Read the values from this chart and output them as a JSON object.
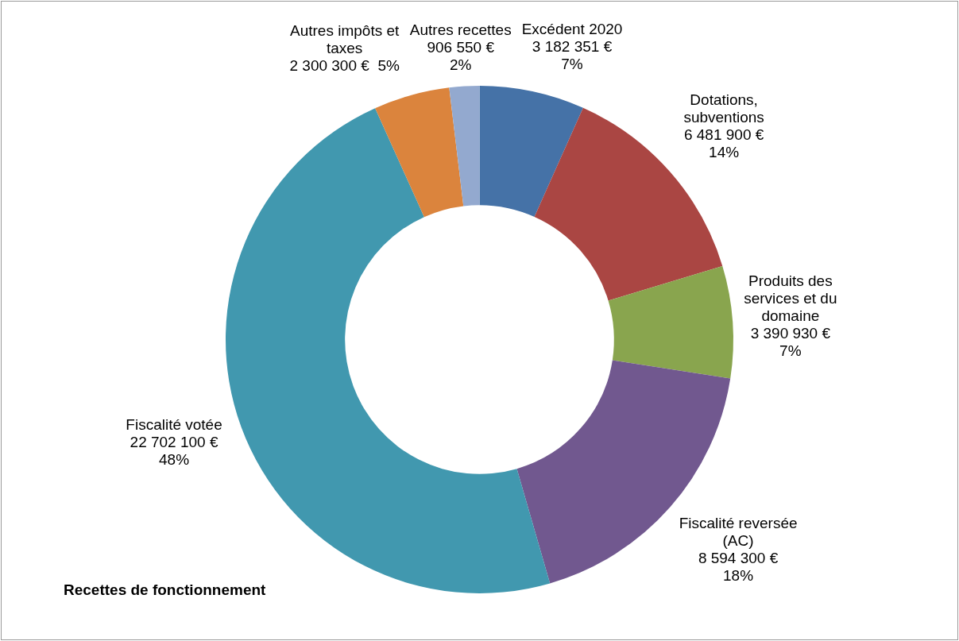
{
  "chart_data": {
    "type": "donut",
    "title": "Recettes de fonctionnement",
    "categories": [
      "Excédent 2020",
      "Dotations, subventions",
      "Produits des services et du domaine",
      "Fiscalité reversée (AC)",
      "Fiscalité votée",
      "Autres impôts et taxes",
      "Autres recettes"
    ],
    "values": [
      3182351,
      6481900,
      3390930,
      8594300,
      22702100,
      2300300,
      906550
    ],
    "colors": [
      "#4572a7",
      "#aa4643",
      "#89a54e",
      "#71588f",
      "#4198af",
      "#db843d",
      "#93a9cf"
    ],
    "value_labels": [
      "3 182 351 €\n7%",
      "6 481 900 €\n14%",
      "3 390 930 €\n7%",
      "8 594 300 €\n18%",
      "22 702 100 €\n48%",
      "2 300 300 €  5%",
      "906 550 €\n2%"
    ],
    "legend": false
  }
}
